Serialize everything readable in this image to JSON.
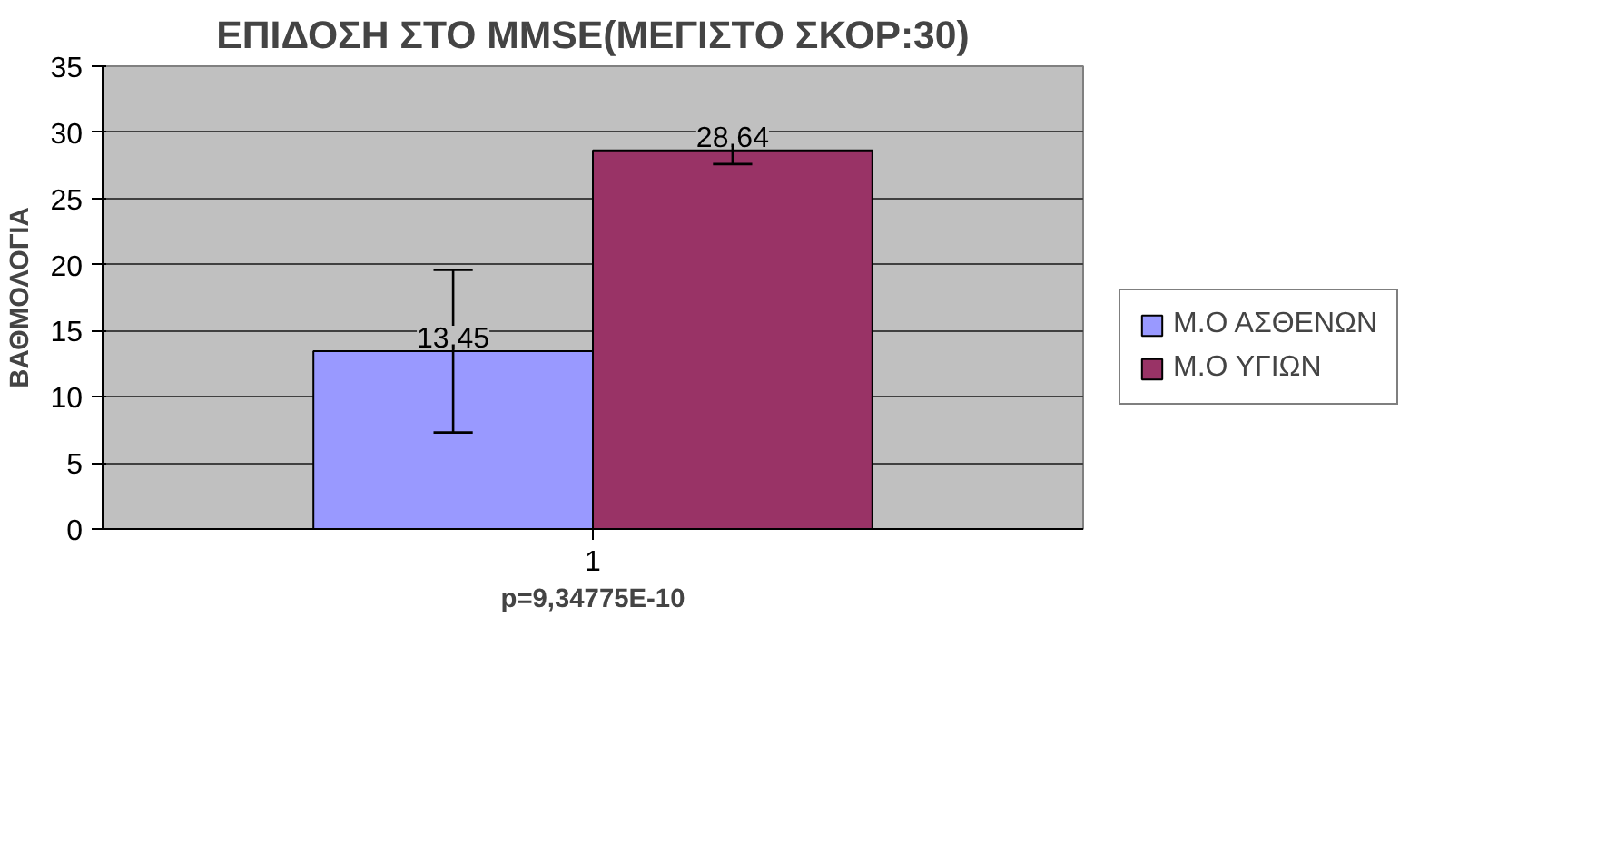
{
  "chart_data": {
    "type": "bar",
    "title": "ΕΠΙΔΟΣΗ ΣΤΟ MMSE(ΜΕΓΙΣΤΟ ΣΚΟΡ:30)",
    "ylabel": "ΒΑΘΜΟΛΟΓΙΑ",
    "xlabel": "p=9,34775E-10",
    "categories": [
      "1"
    ],
    "series": [
      {
        "name": "Μ.Ο ΑΣΘΕΝΩΝ",
        "color": "#9999ff",
        "values": [
          13.45
        ],
        "errors": [
          [
            7.3,
            19.6
          ]
        ],
        "value_labels": [
          "13,45"
        ]
      },
      {
        "name": "Μ.Ο ΥΓΙΩΝ",
        "color": "#993366",
        "values": [
          28.64
        ],
        "errors": [
          [
            27.6,
            29.8
          ]
        ],
        "value_labels": [
          "28,64"
        ]
      }
    ],
    "ylim": [
      0,
      35
    ],
    "yticks": [
      0,
      5,
      10,
      15,
      20,
      25,
      30,
      35
    ],
    "grid": "y",
    "legend": "right"
  }
}
